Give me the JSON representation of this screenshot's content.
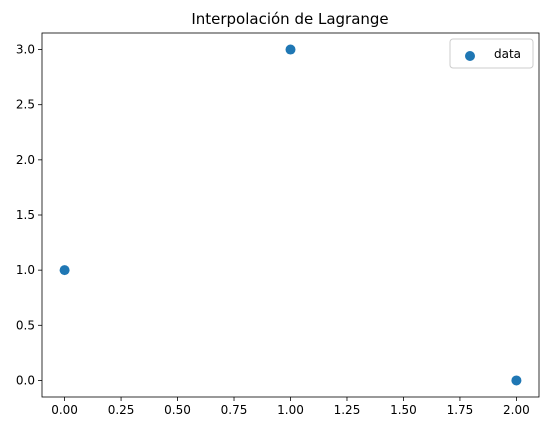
{
  "chart_data": {
    "type": "scatter",
    "title": "Interpolación de Lagrange",
    "xlabel": "",
    "ylabel": "",
    "series": [
      {
        "name": "data",
        "color": "#1f77b4",
        "x": [
          0,
          1,
          2
        ],
        "y": [
          1,
          3,
          0
        ]
      }
    ],
    "xlim": [
      -0.1,
      2.1
    ],
    "ylim": [
      -0.15,
      3.15
    ],
    "xticks": [
      "0.00",
      "0.25",
      "0.50",
      "0.75",
      "1.00",
      "1.25",
      "1.50",
      "1.75",
      "2.00"
    ],
    "yticks": [
      "0.0",
      "0.5",
      "1.0",
      "1.5",
      "2.0",
      "2.5",
      "3.0"
    ],
    "grid": false,
    "legend": "top-right"
  }
}
